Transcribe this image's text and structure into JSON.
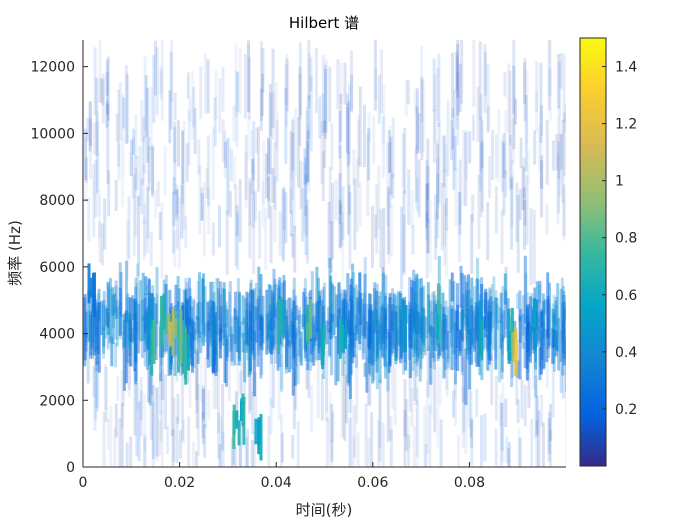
{
  "chart_data": {
    "type": "heatmap",
    "title": "Hilbert 谱",
    "xlabel": "时间(秒)",
    "ylabel": "频率 (Hz)",
    "xlim": [
      0,
      0.1
    ],
    "ylim": [
      0,
      12800
    ],
    "x_ticks": [
      {
        "value": 0,
        "label": "0"
      },
      {
        "value": 0.02,
        "label": "0.02"
      },
      {
        "value": 0.04,
        "label": "0.04"
      },
      {
        "value": 0.06,
        "label": "0.06"
      },
      {
        "value": 0.08,
        "label": "0.08"
      }
    ],
    "y_ticks": [
      {
        "value": 0,
        "label": "0"
      },
      {
        "value": 2000,
        "label": "2000"
      },
      {
        "value": 4000,
        "label": "4000"
      },
      {
        "value": 6000,
        "label": "6000"
      },
      {
        "value": 8000,
        "label": "8000"
      },
      {
        "value": 10000,
        "label": "10000"
      },
      {
        "value": 12000,
        "label": "12000"
      }
    ],
    "colorbar": {
      "colormap": "parula",
      "range": [
        0,
        1.5
      ],
      "ticks": [
        {
          "value": 0.2,
          "label": "0.2"
        },
        {
          "value": 0.4,
          "label": "0.4"
        },
        {
          "value": 0.6,
          "label": "0.6"
        },
        {
          "value": 0.8,
          "label": "0.8"
        },
        {
          "value": 1.0,
          "label": "1"
        },
        {
          "value": 1.2,
          "label": "1.2"
        },
        {
          "value": 1.4,
          "label": "1.4"
        }
      ]
    },
    "hotspots": [
      {
        "t": 0.0015,
        "f": 5300,
        "a": 0.35
      },
      {
        "t": 0.0135,
        "f": 4200,
        "a": 0.6
      },
      {
        "t": 0.0145,
        "f": 3500,
        "a": 0.9
      },
      {
        "t": 0.0165,
        "f": 4500,
        "a": 0.85
      },
      {
        "t": 0.018,
        "f": 4100,
        "a": 1.25
      },
      {
        "t": 0.0195,
        "f": 3900,
        "a": 1.0
      },
      {
        "t": 0.021,
        "f": 3300,
        "a": 0.8
      },
      {
        "t": 0.0315,
        "f": 1300,
        "a": 0.8
      },
      {
        "t": 0.033,
        "f": 1500,
        "a": 0.75
      },
      {
        "t": 0.036,
        "f": 1100,
        "a": 0.6
      },
      {
        "t": 0.0405,
        "f": 4200,
        "a": 0.8
      },
      {
        "t": 0.0465,
        "f": 4300,
        "a": 0.9
      },
      {
        "t": 0.0495,
        "f": 3700,
        "a": 0.75
      },
      {
        "t": 0.0535,
        "f": 3900,
        "a": 0.7
      },
      {
        "t": 0.066,
        "f": 4200,
        "a": 0.5
      },
      {
        "t": 0.073,
        "f": 4400,
        "a": 0.85
      },
      {
        "t": 0.082,
        "f": 4000,
        "a": 0.7
      },
      {
        "t": 0.088,
        "f": 3800,
        "a": 0.8
      },
      {
        "t": 0.089,
        "f": 3300,
        "a": 1.3
      },
      {
        "t": 0.0935,
        "f": 4300,
        "a": 0.55
      }
    ]
  }
}
